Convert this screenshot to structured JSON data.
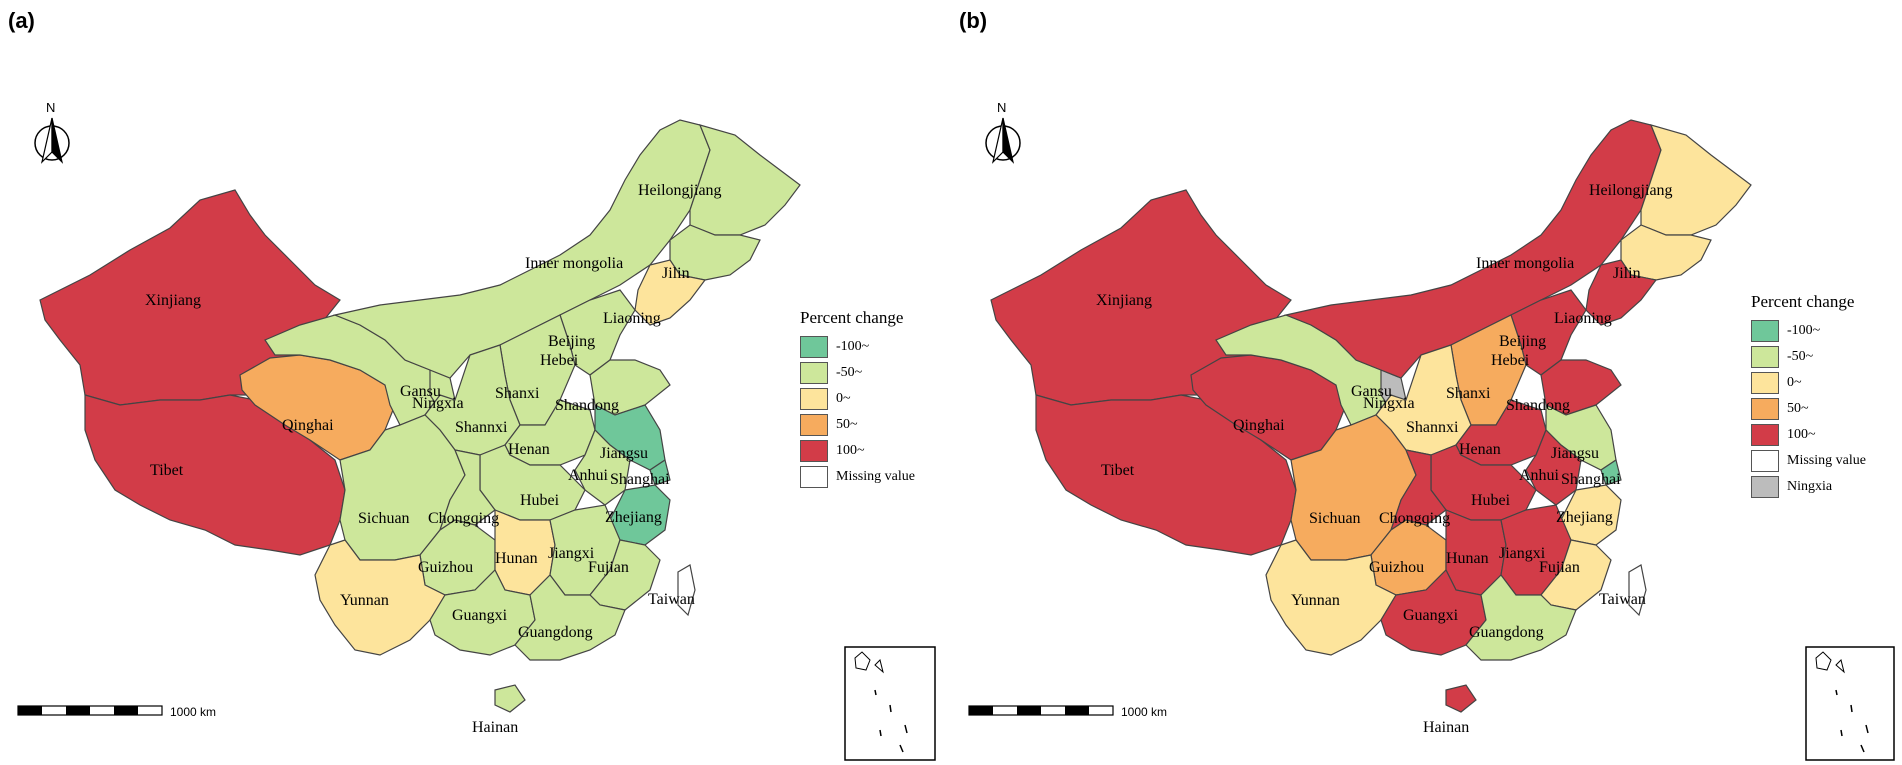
{
  "legend_title": "Percent change",
  "north_label": "N",
  "scale_label": "1000 km",
  "legend_colors": {
    "neg100": "#6fc79a",
    "neg50": "#cde79b",
    "zero": "#fde49c",
    "p50": "#f6ab5e",
    "p100": "#d23c48",
    "missing": "#ffffff",
    "ningxia": "#bcbcbc"
  },
  "panels": [
    {
      "label": "(a)",
      "legend_items": [
        "-100~",
        "-50~",
        "0~",
        "50~",
        "100~",
        "Missing value"
      ],
      "province_labels": {
        "Xinjiang": "Xinjiang",
        "Tibet": "Tibet",
        "Qinghai": "Qinghai",
        "Gansu": "Gansu",
        "Ningxia": "Ningxia",
        "Inner mongolia": "Inner mongolia",
        "Heilongjiang": "Heilongjiang",
        "Jilin": "Jilin",
        "Liaoning": "Liaoning",
        "Beijing": "Beijing",
        "Hebei": "Hebei",
        "Shanxi": "Shanxi",
        "Shandong": "Shandong",
        "Shannxi": "Shannxi",
        "Henan": "Henan",
        "Jiangsu": "Jiangsu",
        "Anhui": "Anhui",
        "Shanghai": "Shanghai",
        "Hubei": "Hubei",
        "Sichuan": "Sichuan",
        "Chongqing": "Chongqing",
        "Zhejiang": "Zhejiang",
        "Guizhou": "Guizhou",
        "Hunan": "Hunan",
        "Jiangxi": "Jiangxi",
        "Fujian": "Fujian",
        "Yunnan": "Yunnan",
        "Guangxi": "Guangxi",
        "Guangdong": "Guangdong",
        "Taiwan": "Taiwan",
        "Hainan": "Hainan"
      },
      "province_classes": {
        "Xinjiang": "100~",
        "Tibet": "100~",
        "Qinghai": "50~",
        "Gansu": "-50~",
        "Ningxia": "-50~",
        "Inner mongolia": "-50~",
        "Heilongjiang": "-50~",
        "Jilin": "-50~",
        "Liaoning": "0~",
        "Beijing": "-50~",
        "Hebei": "-50~",
        "Shanxi": "-50~",
        "Shandong": "-50~",
        "Shannxi": "-50~",
        "Henan": "-50~",
        "Jiangsu": "-100~",
        "Anhui": "-50~",
        "Shanghai": "-100~",
        "Hubei": "-50~",
        "Sichuan": "-50~",
        "Chongqing": "-50~",
        "Zhejiang": "-100~",
        "Guizhou": "-50~",
        "Hunan": "0~",
        "Jiangxi": "-50~",
        "Fujian": "-50~",
        "Yunnan": "0~",
        "Guangxi": "-50~",
        "Guangdong": "-50~",
        "Hainan": "-50~",
        "Taiwan": "Missing value"
      }
    },
    {
      "label": "(b)",
      "legend_items": [
        "-100~",
        "-50~",
        "0~",
        "50~",
        "100~",
        "Missing value",
        "Ningxia"
      ],
      "province_labels": {
        "Xinjiang": "Xinjiang",
        "Tibet": "Tibet",
        "Qinghai": "Qinghai",
        "Gansu": "Gansu",
        "Ningxia": "Ningxia",
        "Inner mongolia": "Inner mongolia",
        "Heilongjiang": "Heilongjiang",
        "Jilin": "Jilin",
        "Liaoning": "Liaoning",
        "Beijing": "Beijing",
        "Hebei": "Hebei",
        "Shanxi": "Shanxi",
        "Shandong": "Shandong",
        "Shannxi": "Shannxi",
        "Henan": "Henan",
        "Jiangsu": "Jiangsu",
        "Anhui": "Anhui",
        "Shanghai": "Shanghai",
        "Hubei": "Hubei",
        "Sichuan": "Sichuan",
        "Chongqing": "Chongqing",
        "Zhejiang": "Zhejiang",
        "Guizhou": "Guizhou",
        "Hunan": "Hunan",
        "Jiangxi": "Jiangxi",
        "Fujian": "Fujian",
        "Yunnan": "Yunnan",
        "Guangxi": "Guangxi",
        "Guangdong": "Guangdong",
        "Taiwan": "Taiwan",
        "Hainan": "Hainan"
      },
      "province_classes": {
        "Xinjiang": "100~",
        "Tibet": "100~",
        "Qinghai": "100~",
        "Gansu": "-50~",
        "Ningxia": "Ningxia",
        "Inner mongolia": "100~",
        "Heilongjiang": "0~",
        "Jilin": "0~",
        "Liaoning": "100~",
        "Beijing": "-100~",
        "Hebei": "100~",
        "Shanxi": "50~",
        "Shandong": "100~",
        "Shannxi": "0~",
        "Henan": "100~",
        "Jiangsu": "-50~",
        "Anhui": "100~",
        "Shanghai": "-100~",
        "Hubei": "100~",
        "Sichuan": "50~",
        "Chongqing": "100~",
        "Zhejiang": "0~",
        "Guizhou": "50~",
        "Hunan": "100~",
        "Jiangxi": "100~",
        "Fujian": "0~",
        "Yunnan": "0~",
        "Guangxi": "100~",
        "Guangdong": "-50~",
        "Hainan": "100~",
        "Taiwan": "Missing value"
      }
    }
  ]
}
